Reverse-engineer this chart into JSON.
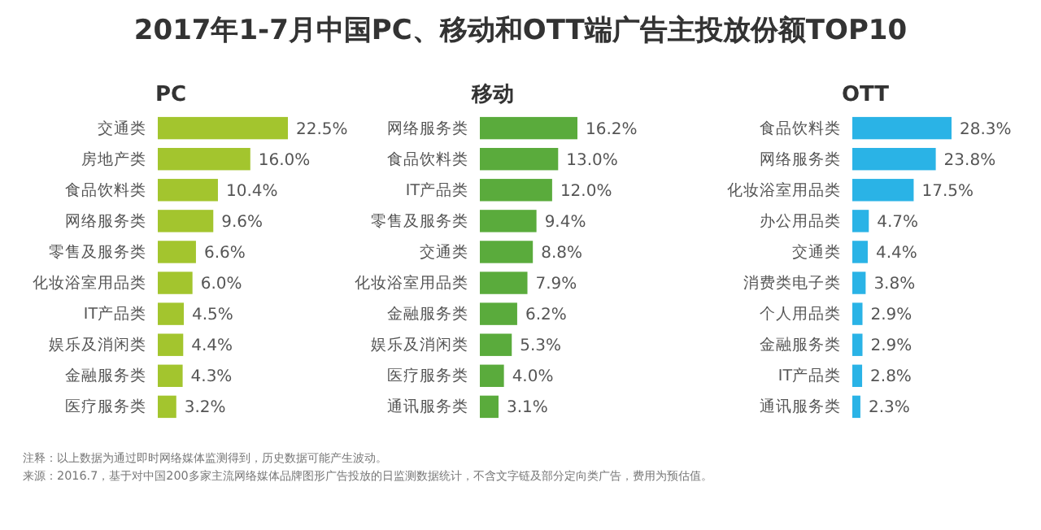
{
  "chart_data": [
    {
      "type": "other",
      "title": "2017年1-7月中国PC、移动和OTT端广告主投放份额TOP10",
      "annotations": [
        "注释：以上数据为通过即时网络媒体监测得到，历史数据可能产生波动。",
        "来源：2016.7，基于对中国200多家主流网络媒体品牌图形广告投放的日监测数据统计，不含文字链及部分定向类广告，费用为预估值。"
      ]
    },
    {
      "type": "bar",
      "orientation": "horizontal",
      "title": "PC",
      "categories": [
        "交通类",
        "房地产类",
        "食品饮料类",
        "网络服务类",
        "零售及服务类",
        "化妆浴室用品类",
        "IT产品类",
        "娱乐及消闲类",
        "金融服务类",
        "医疗服务类"
      ],
      "values": [
        22.5,
        16.0,
        10.4,
        9.6,
        6.6,
        6.0,
        4.5,
        4.4,
        4.3,
        3.2
      ],
      "value_labels": [
        "22.5%",
        "16.0%",
        "10.4%",
        "9.6%",
        "6.6%",
        "6.0%",
        "4.5%",
        "4.4%",
        "4.3%",
        "3.2%"
      ],
      "color": "#a3c52e",
      "tick_labels": "y"
    },
    {
      "type": "bar",
      "orientation": "horizontal",
      "title": "移动",
      "categories": [
        "网络服务类",
        "食品饮料类",
        "IT产品类",
        "零售及服务类",
        "交通类",
        "化妆浴室用品类",
        "金融服务类",
        "娱乐及消闲类",
        "医疗服务类",
        "通讯服务类"
      ],
      "values": [
        16.2,
        13.0,
        12.0,
        9.4,
        8.8,
        7.9,
        6.2,
        5.3,
        4.0,
        3.1
      ],
      "value_labels": [
        "16.2%",
        "13.0%",
        "12.0%",
        "9.4%",
        "8.8%",
        "7.9%",
        "6.2%",
        "5.3%",
        "4.0%",
        "3.1%"
      ],
      "color": "#5aab3c",
      "tick_labels": "y"
    },
    {
      "type": "bar",
      "orientation": "horizontal",
      "title": "OTT",
      "categories": [
        "食品饮料类",
        "网络服务类",
        "化妆浴室用品类",
        "办公用品类",
        "交通类",
        "消费类电子类",
        "个人用品类",
        "金融服务类",
        "IT产品类",
        "通讯服务类"
      ],
      "values": [
        28.3,
        23.8,
        17.5,
        4.7,
        4.4,
        3.8,
        2.9,
        2.9,
        2.8,
        2.3
      ],
      "value_labels": [
        "28.3%",
        "23.8%",
        "17.5%",
        "4.7%",
        "4.4%",
        "3.8%",
        "2.9%",
        "2.9%",
        "2.8%",
        "2.3%"
      ],
      "color": "#2ab3e6",
      "tick_labels": "y"
    }
  ]
}
